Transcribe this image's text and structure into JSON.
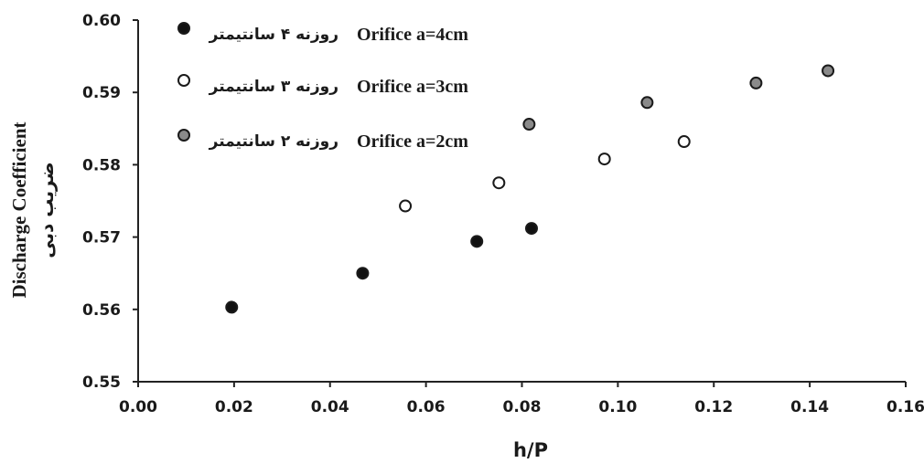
{
  "chart_data": {
    "type": "scatter",
    "title": "",
    "xlabel": "h/P",
    "ylabel": "Discharge Coefficient",
    "ylabel_secondary": "ضریب دبی",
    "xlim": [
      0.0,
      0.16
    ],
    "ylim": [
      0.55,
      0.6
    ],
    "x_ticks": [
      "0.00",
      "0.02",
      "0.04",
      "0.06",
      "0.08",
      "0.10",
      "0.12",
      "0.14",
      "0.16"
    ],
    "y_ticks": [
      "0.55",
      "0.56",
      "0.57",
      "0.58",
      "0.59",
      "0.60"
    ],
    "grid": false,
    "legend_position": "top-left",
    "series": [
      {
        "name": "Orifice a=4cm",
        "name_fa": "روزنه ۴ سانتیمتر",
        "marker_fill": "#111111",
        "points": [
          [
            0.0195,
            0.5603
          ],
          [
            0.0468,
            0.565
          ],
          [
            0.0706,
            0.5694
          ],
          [
            0.082,
            0.5712
          ]
        ]
      },
      {
        "name": "Orifice a=3cm",
        "name_fa": "روزنه ۳ سانتیمتر",
        "marker_fill": "#ffffff",
        "points": [
          [
            0.0557,
            0.5743
          ],
          [
            0.0752,
            0.5775
          ],
          [
            0.0972,
            0.5808
          ],
          [
            0.1138,
            0.5832
          ]
        ]
      },
      {
        "name": "Orifice a=2cm",
        "name_fa": "روزنه ۲ سانتیمتر",
        "marker_fill": "#8a8a8a",
        "points": [
          [
            0.0815,
            0.5856
          ],
          [
            0.1061,
            0.5886
          ],
          [
            0.1288,
            0.5913
          ],
          [
            0.1438,
            0.593
          ]
        ]
      }
    ]
  }
}
